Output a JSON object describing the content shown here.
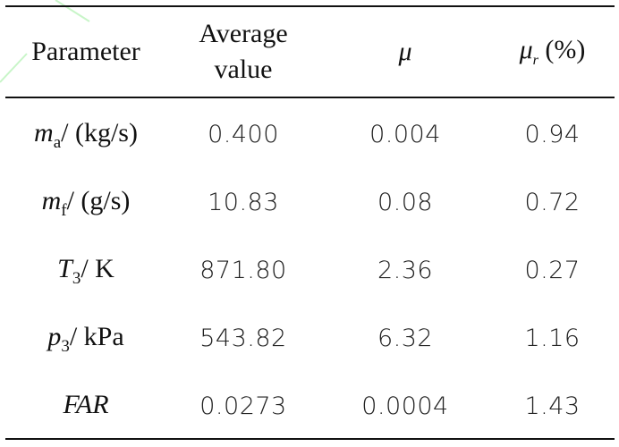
{
  "table": {
    "header": {
      "parameter": "Parameter",
      "average_line1": "Average",
      "average_line2": "value",
      "mu": "μ",
      "mu_r_symbol": "μ",
      "mu_r_sub": "r",
      "mu_r_unit": "(%)"
    },
    "rows": [
      {
        "sym": "m",
        "sub": "a",
        "unit": "/ (kg/s)",
        "avg": "0.400",
        "mu": "0.004",
        "mu_r": "0.94"
      },
      {
        "sym": "m",
        "sub": "f",
        "unit": "/ (g/s)",
        "avg": "10.83",
        "mu": "0.08",
        "mu_r": "0.72"
      },
      {
        "sym": "T",
        "sub": "3",
        "unit": "/ K",
        "avg": "871.80",
        "mu": "2.36",
        "mu_r": "0.27"
      },
      {
        "sym": "p",
        "sub": "3",
        "unit": "/ kPa",
        "avg": "543.82",
        "mu": "6.32",
        "mu_r": "1.16"
      },
      {
        "sym": "FAR",
        "sub": "",
        "unit": "",
        "avg": "0.0273",
        "mu": "0.0004",
        "mu_r": "1.43"
      }
    ]
  },
  "colors": {
    "text": "#111111",
    "watermark": "#c8f5c8"
  }
}
